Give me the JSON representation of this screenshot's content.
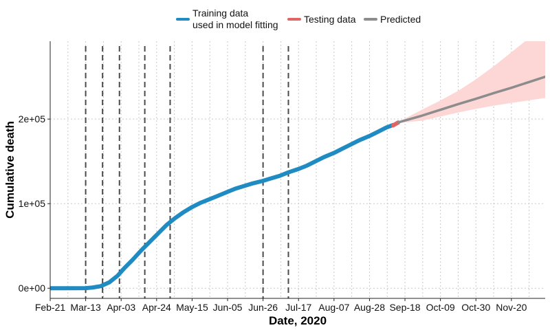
{
  "chart_data": {
    "type": "line",
    "xlabel": "Date, 2020",
    "ylabel": "Cumulative death",
    "x_ticks": [
      "Feb-21",
      "Mar-13",
      "Apr-03",
      "Apr-24",
      "May-15",
      "Jun-05",
      "Jun-26",
      "Jul-17",
      "Aug-07",
      "Aug-28",
      "Sep-18",
      "Oct-09",
      "Oct-30",
      "Nov-20"
    ],
    "y_ticks": [
      {
        "value": 0,
        "label": "0e+00"
      },
      {
        "value": 100000,
        "label": "1e+05"
      },
      {
        "value": 200000,
        "label": "2e+05"
      }
    ],
    "xlim": [
      "2020-02-21",
      "2020-12-10"
    ],
    "ylim": [
      -12000,
      292000
    ],
    "grid": "dotted",
    "legend_position": "top",
    "legend": [
      {
        "key": "train",
        "label_lines": [
          "Training data",
          "used in model fitting"
        ],
        "color": "#1f8bc2"
      },
      {
        "key": "test",
        "label_lines": [
          "Testing data"
        ],
        "color": "#e06666"
      },
      {
        "key": "pred",
        "label_lines": [
          "Predicted"
        ],
        "color": "#8c8c8c"
      }
    ],
    "intervention_dates": [
      "2020-03-13",
      "2020-03-23",
      "2020-04-02",
      "2020-04-17",
      "2020-05-02",
      "2020-06-26",
      "2020-07-11"
    ],
    "series": [
      {
        "name": "Training data used in model fitting",
        "color": "#1f8bc2",
        "points": [
          [
            "2020-02-21",
            0
          ],
          [
            "2020-03-01",
            0
          ],
          [
            "2020-03-13",
            100
          ],
          [
            "2020-03-17",
            800
          ],
          [
            "2020-03-22",
            2500
          ],
          [
            "2020-03-27",
            7000
          ],
          [
            "2020-04-01",
            15000
          ],
          [
            "2020-04-05",
            24000
          ],
          [
            "2020-04-10",
            34000
          ],
          [
            "2020-04-15",
            45000
          ],
          [
            "2020-04-20",
            55000
          ],
          [
            "2020-04-25",
            65000
          ],
          [
            "2020-04-30",
            75000
          ],
          [
            "2020-05-05",
            83000
          ],
          [
            "2020-05-10",
            90000
          ],
          [
            "2020-05-15",
            96000
          ],
          [
            "2020-05-20",
            101000
          ],
          [
            "2020-05-25",
            105000
          ],
          [
            "2020-05-30",
            109000
          ],
          [
            "2020-06-05",
            114000
          ],
          [
            "2020-06-10",
            118000
          ],
          [
            "2020-06-15",
            121000
          ],
          [
            "2020-06-20",
            124000
          ],
          [
            "2020-06-26",
            127000
          ],
          [
            "2020-07-01",
            130000
          ],
          [
            "2020-07-06",
            133000
          ],
          [
            "2020-07-11",
            137000
          ],
          [
            "2020-07-17",
            141000
          ],
          [
            "2020-07-22",
            145000
          ],
          [
            "2020-07-27",
            150000
          ],
          [
            "2020-08-01",
            155000
          ],
          [
            "2020-08-07",
            160000
          ],
          [
            "2020-08-12",
            165000
          ],
          [
            "2020-08-17",
            170000
          ],
          [
            "2020-08-22",
            175000
          ],
          [
            "2020-08-28",
            180000
          ],
          [
            "2020-09-02",
            185000
          ],
          [
            "2020-09-07",
            190000
          ],
          [
            "2020-09-11",
            193000
          ]
        ]
      },
      {
        "name": "Testing data",
        "color": "#e06666",
        "points": [
          [
            "2020-09-11",
            192500
          ],
          [
            "2020-09-14",
            196000
          ]
        ]
      },
      {
        "name": "Predicted",
        "color": "#8c8c8c",
        "points": [
          [
            "2020-09-14",
            196000
          ],
          [
            "2020-09-28",
            204000
          ],
          [
            "2020-10-09",
            211000
          ],
          [
            "2020-10-20",
            218000
          ],
          [
            "2020-10-30",
            224000
          ],
          [
            "2020-11-10",
            231000
          ],
          [
            "2020-11-20",
            237000
          ],
          [
            "2020-11-30",
            243500
          ],
          [
            "2020-12-10",
            250000
          ]
        ],
        "band": [
          [
            "2020-09-14",
            195500,
            196500
          ],
          [
            "2020-09-28",
            198000,
            211000
          ],
          [
            "2020-10-09",
            203000,
            222000
          ],
          [
            "2020-10-20",
            208000,
            234000
          ],
          [
            "2020-10-30",
            212000,
            247000
          ],
          [
            "2020-11-10",
            216000,
            263000
          ],
          [
            "2020-11-20",
            219000,
            279000
          ],
          [
            "2020-11-30",
            222000,
            295000
          ],
          [
            "2020-12-10",
            225000,
            310000
          ]
        ]
      }
    ]
  }
}
